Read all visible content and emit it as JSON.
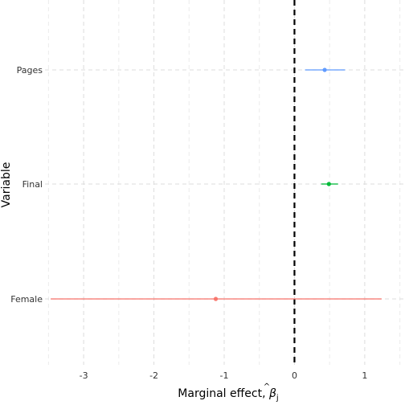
{
  "chart_data": {
    "type": "coefficient_plot",
    "title": "",
    "xlabel_text": "Marginal effect, ",
    "xlabel_symbol": "β",
    "xlabel_hat": "^",
    "xlabel_subscript": "j",
    "ylabel": "Variable",
    "xlim": [
      -3.55,
      1.55
    ],
    "x_ticks": [
      -3,
      -2,
      -1,
      0,
      1
    ],
    "x_tick_labels": [
      "-3",
      "-2",
      "-1",
      "0",
      "1"
    ],
    "x_minor_ticks": [
      -3.5,
      -2.5,
      -1.5,
      -0.5,
      0.5,
      1.5
    ],
    "reference_line": 0,
    "grid": true,
    "categories": [
      "Pages",
      "Final",
      "Female"
    ],
    "series": [
      {
        "name": "Pages",
        "estimate": 0.43,
        "lower": 0.15,
        "upper": 0.72,
        "color": "#619CFF"
      },
      {
        "name": "Final",
        "estimate": 0.49,
        "lower": 0.38,
        "upper": 0.62,
        "color": "#00BA38"
      },
      {
        "name": "Female",
        "estimate": -1.12,
        "lower": -3.47,
        "upper": 1.24,
        "color": "#F8766D"
      }
    ]
  }
}
